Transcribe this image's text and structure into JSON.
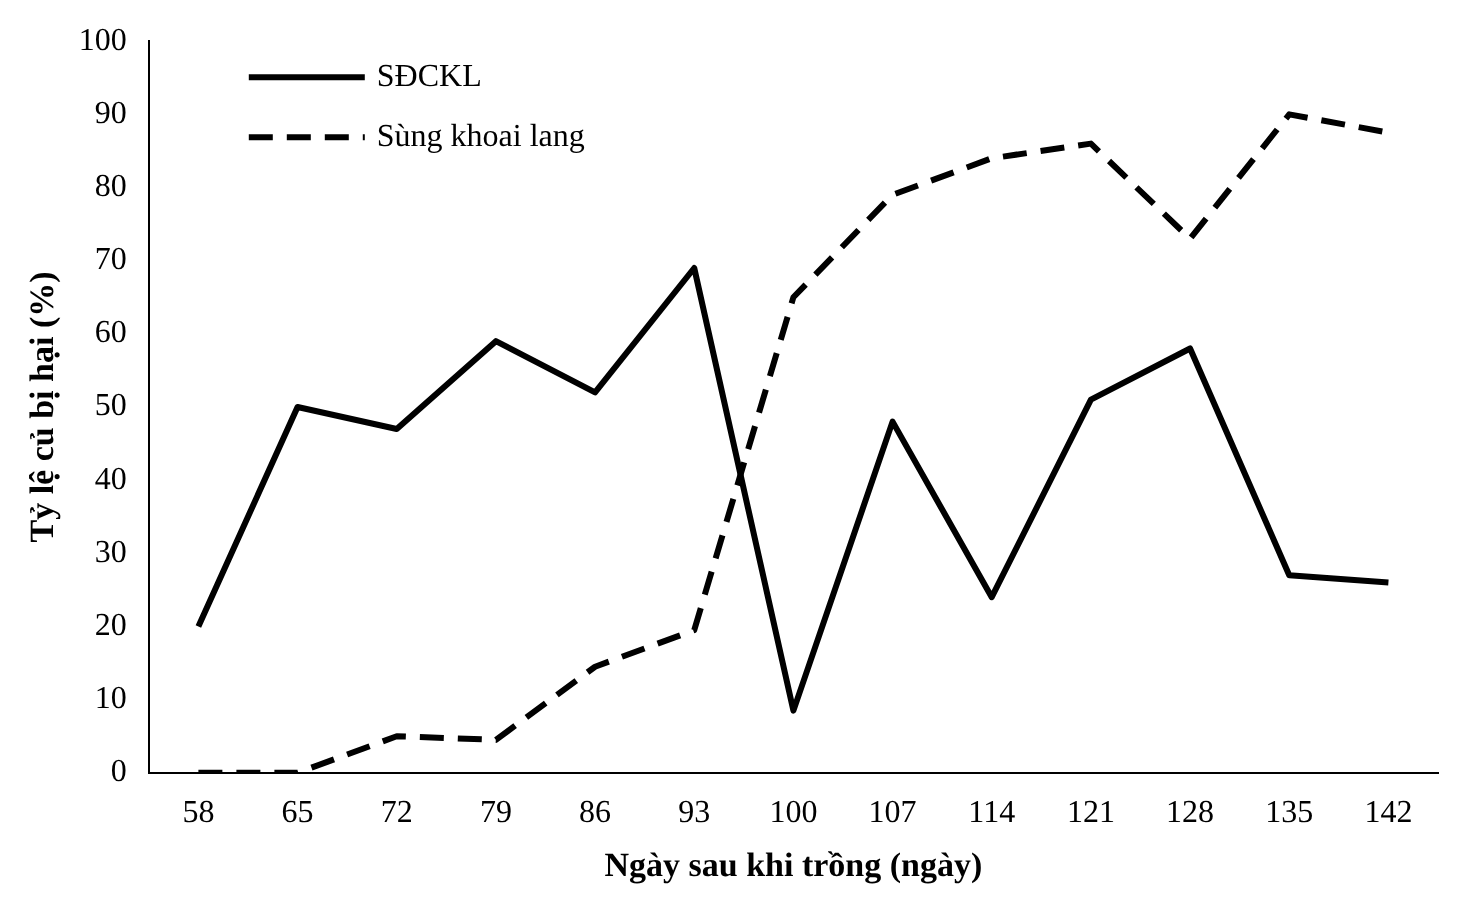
{
  "chart_data": {
    "type": "line",
    "xlabel": "Ngày sau khi trồng (ngày)",
    "ylabel": "Tỷ lệ củ bị hại (%)",
    "categories": [
      "58",
      "65",
      "72",
      "79",
      "86",
      "93",
      "100",
      "107",
      "114",
      "121",
      "128",
      "135",
      "142"
    ],
    "series": [
      {
        "name": "SĐCKL",
        "color": "#000000",
        "line_style": "solid",
        "values": [
          20,
          50,
          47,
          59,
          52,
          69,
          8.5,
          48,
          24,
          51,
          58,
          27,
          26
        ]
      },
      {
        "name": "Sùng khoai lang",
        "color": "#000000",
        "line_style": "dashed",
        "values": [
          0,
          0,
          5,
          4.5,
          14.5,
          19.5,
          65,
          79,
          84,
          86,
          73,
          90,
          87.5
        ]
      }
    ],
    "ylim": [
      0,
      100
    ],
    "yticks": [
      0,
      10,
      20,
      30,
      40,
      50,
      60,
      70,
      80,
      90,
      100
    ],
    "grid": false,
    "legend": "top left",
    "marker": "none"
  }
}
